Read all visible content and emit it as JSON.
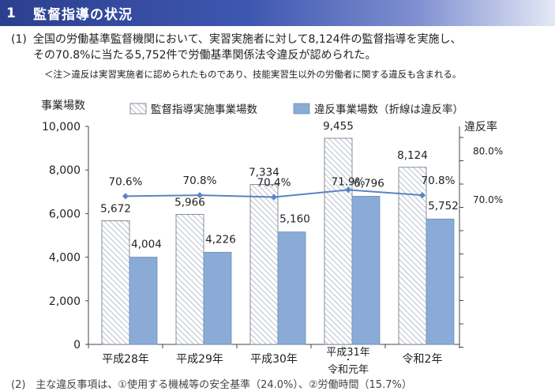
{
  "header": {
    "number": "1",
    "title": "監督指導の状況"
  },
  "paragraph": {
    "label": "(1)",
    "line1": "全国の労働基準監督機関において、実習実施者に対して8,124件の監督指導を実施し、",
    "line2": "その70.8%に当たる5,752件で労働基準関係法令違反が認められた。"
  },
  "note": "＜注＞違反は実習実施者に認められたものであり、技能実習生以外の労働者に関する違反も含まれる。",
  "footer_cut": "(2)　主な違反事項は、①使用する機械等の安全基準（24.0%）、②労働時間（15.7%）",
  "colors": {
    "hatch_bar": "#ffffff",
    "hatch_line": "#9aa6b8",
    "violation_bar": "#8aabd6",
    "violation_bar_edge": "#6f8fbd",
    "rate_line": "#5b84c4",
    "axis": "#444444"
  },
  "chart_data": {
    "type": "bar",
    "ylabel": "事業場数",
    "y2label": "違反率",
    "ylim": [
      0,
      10000
    ],
    "yticks": [
      "0",
      "2,000",
      "4,000",
      "6,000",
      "8,000",
      "10,000"
    ],
    "y2ticks": [
      "70.0%",
      "80.0%"
    ],
    "y2lim": [
      40,
      85
    ],
    "categories": [
      "平成28年",
      "平成29年",
      "平成30年",
      "平成31年・令和元年",
      "令和2年"
    ],
    "category_lines": [
      [
        "平成28年"
      ],
      [
        "平成29年"
      ],
      [
        "平成30年"
      ],
      [
        "平成31年",
        "・",
        "令和元年"
      ],
      [
        "令和2年"
      ]
    ],
    "series": [
      {
        "name": "監督指導実施事業場数",
        "values": [
          5672,
          5966,
          7334,
          9455,
          8124
        ],
        "labels": [
          "5,672",
          "5,966",
          "7,334",
          "9,455",
          "8,124"
        ]
      },
      {
        "name": "違反事業場数（折線は違反率）",
        "values": [
          4004,
          4226,
          5160,
          6796,
          5752
        ],
        "labels": [
          "4,004",
          "4,226",
          "5,160",
          "6,796",
          "5,752"
        ]
      }
    ],
    "rate": {
      "values": [
        70.6,
        70.8,
        70.4,
        71.9,
        70.8
      ],
      "labels": [
        "70.6%",
        "70.8%",
        "70.4%",
        "71.9%",
        "70.8%"
      ]
    }
  }
}
